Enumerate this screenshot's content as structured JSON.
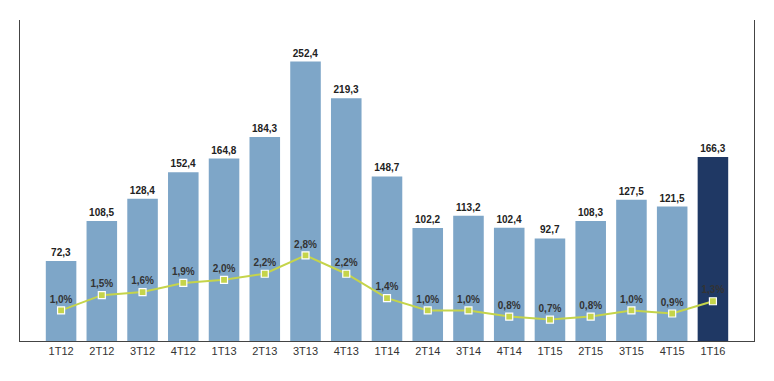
{
  "chart_data": {
    "type": "bar",
    "categories": [
      "1T12",
      "2T12",
      "3T12",
      "4T12",
      "1T13",
      "2T13",
      "3T13",
      "4T13",
      "1T14",
      "2T14",
      "3T14",
      "4T14",
      "1T15",
      "2T15",
      "3T15",
      "4T15",
      "1T16"
    ],
    "series": [
      {
        "type": "bar",
        "values": [
          72.3,
          108.5,
          128.4,
          152.4,
          164.8,
          184.3,
          252.4,
          219.3,
          148.7,
          102.2,
          113.2,
          102.4,
          92.7,
          108.3,
          127.5,
          121.5,
          166.3
        ],
        "value_labels": [
          "72,3",
          "108,5",
          "128,4",
          "152,4",
          "164,8",
          "184,3",
          "252,4",
          "219,3",
          "148,7",
          "102,2",
          "113,2",
          "102,4",
          "92,7",
          "108,3",
          "127,5",
          "121,5",
          "166,3"
        ],
        "colors": [
          "#7EA6C8",
          "#7EA6C8",
          "#7EA6C8",
          "#7EA6C8",
          "#7EA6C8",
          "#7EA6C8",
          "#7EA6C8",
          "#7EA6C8",
          "#7EA6C8",
          "#7EA6C8",
          "#7EA6C8",
          "#7EA6C8",
          "#7EA6C8",
          "#7EA6C8",
          "#7EA6C8",
          "#7EA6C8",
          "#1F3864"
        ]
      },
      {
        "type": "line",
        "axis": "y2",
        "color": "#C5D44A",
        "marker": "square",
        "values": [
          1.0,
          1.5,
          1.6,
          1.9,
          2.0,
          2.2,
          2.8,
          2.2,
          1.4,
          1.0,
          1.0,
          0.8,
          0.7,
          0.8,
          1.0,
          0.9,
          1.3
        ],
        "value_labels": [
          "1,0%",
          "1,5%",
          "1,6%",
          "1,9%",
          "2,0%",
          "2,2%",
          "2,8%",
          "2,2%",
          "1,4%",
          "1,0%",
          "1,0%",
          "0,8%",
          "0,7%",
          "0,8%",
          "1,0%",
          "0,9%",
          "1,3%"
        ]
      }
    ],
    "ylim": [
      0,
      290
    ],
    "y2lim": [
      0,
      10.5
    ],
    "data_labels": true,
    "tick_labels": "x",
    "grid": false
  }
}
